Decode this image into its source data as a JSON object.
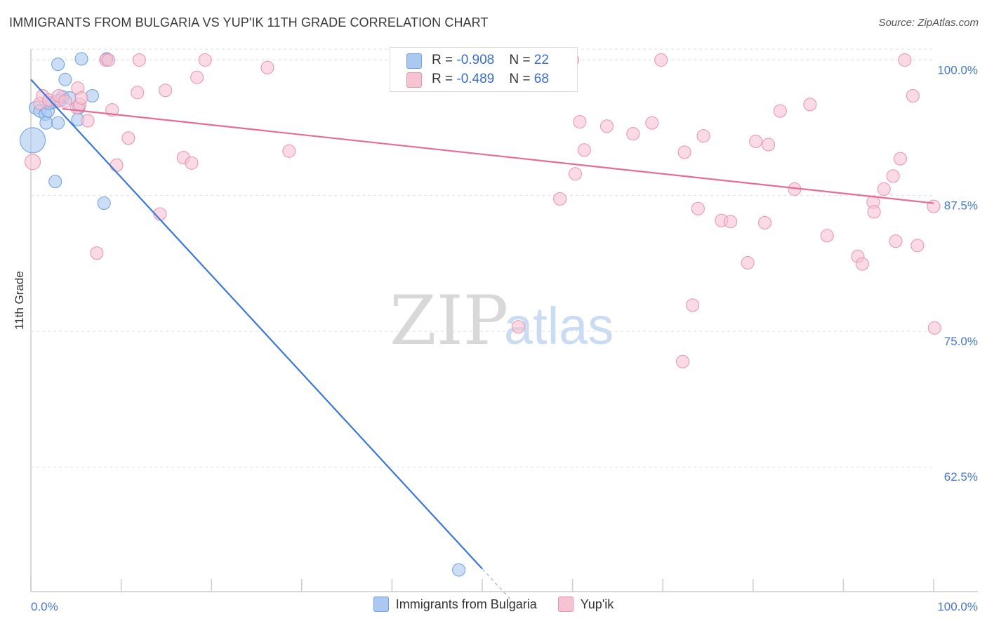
{
  "title": "IMMIGRANTS FROM BULGARIA VS YUP'IK 11TH GRADE CORRELATION CHART",
  "source": "Source: ZipAtlas.com",
  "watermark": {
    "zip": "ZIP",
    "atlas": "atlas"
  },
  "colors": {
    "blue_fill": "#aac8f0",
    "blue_stroke": "#6a9fe0",
    "blue_line": "#3a78d8",
    "pink_fill": "#f6c3d3",
    "pink_stroke": "#ea8fae",
    "pink_line": "#e66b96",
    "axis_text": "#4477cc",
    "grid": "#dddddd"
  },
  "stats": [
    {
      "label_r": "R = ",
      "r": "-0.908",
      "label_n": "N = ",
      "n": "22"
    },
    {
      "label_r": "R = ",
      "r": "-0.489",
      "label_n": "N = ",
      "n": "68"
    }
  ],
  "chart_data": {
    "type": "scatter",
    "title": "IMMIGRANTS FROM BULGARIA VS YUP'IK 11TH GRADE CORRELATION CHART",
    "xlabel": "",
    "ylabel": "11th Grade",
    "xlim": [
      0,
      100
    ],
    "ylim": [
      51,
      101
    ],
    "x_tick_labels": [
      {
        "value": 0,
        "label": "0.0%"
      },
      {
        "value": 100,
        "label": "100.0%"
      }
    ],
    "y_tick_labels": [
      {
        "value": 100,
        "label": "100.0%"
      },
      {
        "value": 87.5,
        "label": "87.5%"
      },
      {
        "value": 75,
        "label": "75.0%"
      },
      {
        "value": 62.5,
        "label": "62.5%"
      }
    ],
    "legend": [
      "Immigrants from Bulgaria",
      "Yup'ik"
    ],
    "series": [
      {
        "name": "Immigrants from Bulgaria",
        "color": "blue",
        "points": [
          [
            0.2,
            92.6,
            18
          ],
          [
            0.5,
            95.6,
            9
          ],
          [
            1.0,
            95.3,
            9
          ],
          [
            1.6,
            95.0,
            9
          ],
          [
            1.7,
            94.2,
            9
          ],
          [
            1.9,
            95.3,
            9
          ],
          [
            2.4,
            96.1,
            9
          ],
          [
            2.7,
            88.8,
            9
          ],
          [
            3.0,
            94.2,
            9
          ],
          [
            3.3,
            96.3,
            9
          ],
          [
            3.5,
            96.6,
            9
          ],
          [
            3.8,
            98.2,
            9
          ],
          [
            3.0,
            99.6,
            9
          ],
          [
            4.3,
            96.5,
            9
          ],
          [
            5.2,
            94.5,
            9
          ],
          [
            5.3,
            95.6,
            9
          ],
          [
            5.6,
            100.1,
            9
          ],
          [
            6.8,
            96.7,
            9
          ],
          [
            8.1,
            86.8,
            9
          ],
          [
            8.4,
            100.1,
            9
          ],
          [
            47.4,
            53.0,
            9
          ],
          [
            2.0,
            96.0,
            9
          ]
        ],
        "trend": {
          "x0": 0,
          "y0": 98.2,
          "x1": 50,
          "y1": 53.1,
          "dash_to": {
            "x": 54.0,
            "y": 49.5
          }
        }
      },
      {
        "name": "Yup'ik",
        "color": "pink",
        "points": [
          [
            0.2,
            90.6,
            11
          ],
          [
            1.0,
            96.0,
            9
          ],
          [
            1.3,
            96.7,
            9
          ],
          [
            2.0,
            96.3,
            9
          ],
          [
            2.9,
            96.2,
            9
          ],
          [
            3.1,
            96.7,
            9
          ],
          [
            3.8,
            96.2,
            9
          ],
          [
            5.1,
            95.6,
            9
          ],
          [
            5.2,
            97.4,
            9
          ],
          [
            5.4,
            95.9,
            9
          ],
          [
            5.6,
            96.5,
            9
          ],
          [
            6.3,
            94.4,
            9
          ],
          [
            7.3,
            82.2,
            9
          ],
          [
            8.3,
            100.0,
            9
          ],
          [
            8.6,
            100.0,
            9
          ],
          [
            9.0,
            95.4,
            9
          ],
          [
            9.5,
            90.3,
            9
          ],
          [
            10.8,
            92.8,
            9
          ],
          [
            11.8,
            97.0,
            9
          ],
          [
            12.0,
            100.0,
            9
          ],
          [
            14.3,
            85.8,
            9
          ],
          [
            14.9,
            97.2,
            9
          ],
          [
            16.9,
            91.0,
            9
          ],
          [
            17.8,
            90.5,
            9
          ],
          [
            18.4,
            98.4,
            9
          ],
          [
            19.3,
            100.0,
            9
          ],
          [
            26.2,
            99.3,
            9
          ],
          [
            28.6,
            91.6,
            9
          ],
          [
            41.9,
            100.0,
            9
          ],
          [
            46.5,
            100.0,
            9
          ],
          [
            54.0,
            75.4,
            9
          ],
          [
            58.6,
            87.2,
            9
          ],
          [
            60.0,
            100.0,
            9
          ],
          [
            60.3,
            89.5,
            9
          ],
          [
            60.8,
            94.3,
            9
          ],
          [
            61.3,
            91.7,
            9
          ],
          [
            63.8,
            93.9,
            9
          ],
          [
            66.7,
            93.2,
            9
          ],
          [
            68.8,
            94.2,
            9
          ],
          [
            69.8,
            100.0,
            9
          ],
          [
            72.4,
            91.5,
            9
          ],
          [
            73.9,
            86.3,
            9
          ],
          [
            73.3,
            77.4,
            9
          ],
          [
            72.2,
            72.2,
            9
          ],
          [
            74.5,
            93.0,
            9
          ],
          [
            76.5,
            85.2,
            9
          ],
          [
            77.5,
            85.1,
            9
          ],
          [
            79.4,
            81.3,
            9
          ],
          [
            80.3,
            92.5,
            9
          ],
          [
            81.3,
            85.0,
            9
          ],
          [
            81.7,
            92.2,
            9
          ],
          [
            83.0,
            95.3,
            9
          ],
          [
            84.6,
            88.1,
            9
          ],
          [
            86.3,
            95.9,
            9
          ],
          [
            88.2,
            83.8,
            9
          ],
          [
            91.6,
            81.9,
            9
          ],
          [
            92.1,
            81.2,
            9
          ],
          [
            93.3,
            86.9,
            9
          ],
          [
            93.4,
            86.0,
            9
          ],
          [
            94.5,
            88.1,
            9
          ],
          [
            95.5,
            89.3,
            9
          ],
          [
            95.8,
            83.3,
            9
          ],
          [
            96.3,
            90.9,
            9
          ],
          [
            96.8,
            100.0,
            9
          ],
          [
            97.7,
            96.7,
            9
          ],
          [
            98.2,
            82.9,
            9
          ],
          [
            100.0,
            86.5,
            9
          ],
          [
            100.1,
            75.3,
            9
          ]
        ],
        "trend": {
          "x0": 3.5,
          "y0": 95.5,
          "x1": 100,
          "y1": 86.8
        }
      }
    ]
  }
}
